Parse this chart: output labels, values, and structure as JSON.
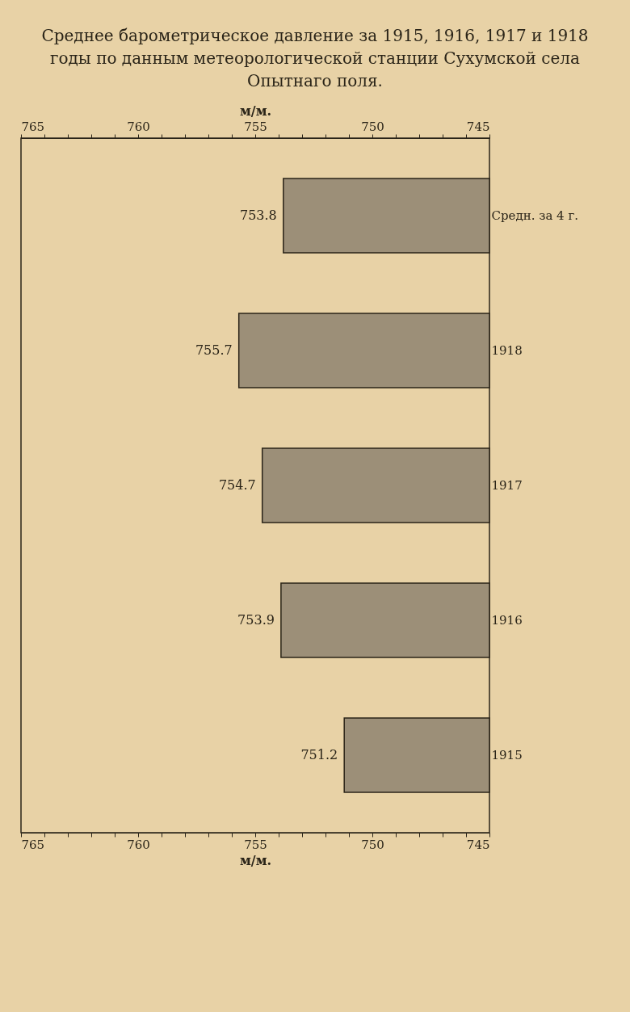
{
  "chart_data": {
    "type": "bar",
    "orientation": "horizontal",
    "title": "Среднее барометрическое давление за 1915, 1916, 1917 и 1918 годы по данным метеорологической станции Сухумской села Опытнаго поля.",
    "categories": [
      "Средн. за 4 г.",
      "1918",
      "1917",
      "1916",
      "1915"
    ],
    "values": [
      753.8,
      755.7,
      754.7,
      753.9,
      751.2
    ],
    "color": "#9c8f78",
    "data_labels": true,
    "xlim": [
      765,
      745
    ],
    "xticks": [
      745,
      {
        "value": 746,
        "label": null
      },
      {
        "value": 747,
        "label": null
      },
      {
        "value": 748,
        "label": null
      },
      {
        "value": 749,
        "label": null
      },
      750,
      {
        "value": 751,
        "label": null
      },
      {
        "value": 752,
        "label": null
      },
      {
        "value": 753,
        "label": null
      },
      {
        "value": 754,
        "label": null
      },
      755,
      {
        "value": 756,
        "label": null
      },
      {
        "value": 757,
        "label": null
      },
      {
        "value": 758,
        "label": null
      },
      {
        "value": 759,
        "label": null
      },
      760,
      {
        "value": 761,
        "label": null
      },
      {
        "value": 762,
        "label": null
      },
      {
        "value": 763,
        "label": null
      },
      {
        "value": 764,
        "label": null
      },
      765
    ],
    "xlabel": "м/м.",
    "x2lim": [
      765,
      745
    ],
    "x2ticks": [
      745,
      {
        "value": 746,
        "label": null
      },
      {
        "value": 747,
        "label": null
      },
      {
        "value": 748,
        "label": null
      },
      {
        "value": 749,
        "label": null
      },
      750,
      {
        "value": 751,
        "label": null
      },
      {
        "value": 752,
        "label": null
      },
      {
        "value": 753,
        "label": null
      },
      {
        "value": 754,
        "label": null
      },
      755,
      {
        "value": 756,
        "label": null
      },
      {
        "value": 757,
        "label": null
      },
      {
        "value": 758,
        "label": null
      },
      {
        "value": 759,
        "label": null
      },
      760,
      {
        "value": 761,
        "label": null
      },
      {
        "value": 762,
        "label": null
      },
      {
        "value": 763,
        "label": null
      },
      {
        "value": 764,
        "label": null
      },
      765
    ],
    "x2label": "м/м.",
    "grid": false
  }
}
